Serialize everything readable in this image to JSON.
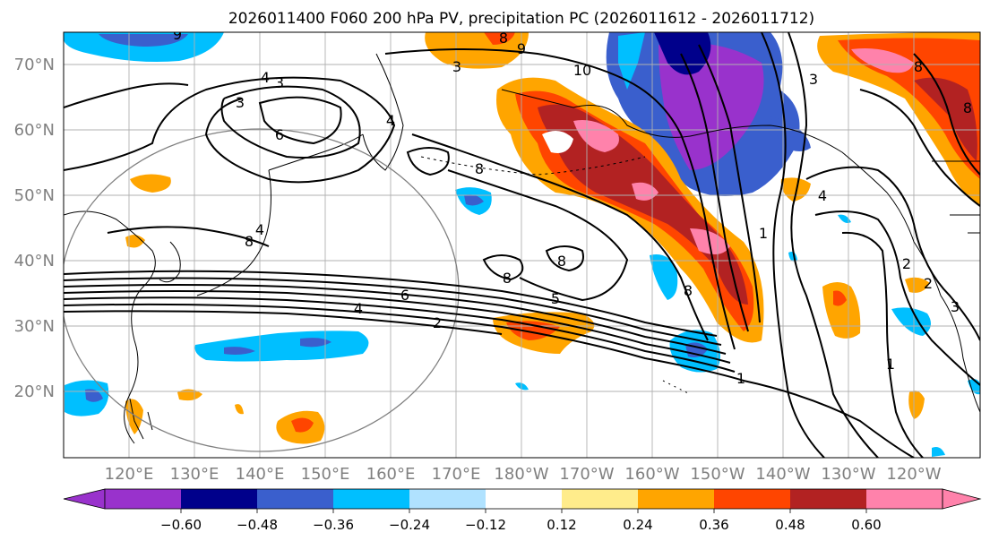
{
  "title": "2026011400 F060 200 hPa PV, precipitation PC (2026011612 - 2026011712)",
  "lat_labels": [
    "70°N",
    "60°N",
    "50°N",
    "40°N",
    "30°N",
    "20°N"
  ],
  "lon_labels": [
    "120°E",
    "130°E",
    "140°E",
    "150°E",
    "160°E",
    "170°E",
    "180°W",
    "170°W",
    "160°W",
    "150°W",
    "140°W",
    "130°W",
    "120°W"
  ],
  "colorbar": {
    "colors": [
      "#9932cc",
      "#00008b",
      "#3a5fcd",
      "#00bfff",
      "#b0e2ff",
      "#ffffff",
      "#ffec8b",
      "#ffa500",
      "#ff4500",
      "#b22222",
      "#ff82ab"
    ],
    "ticks": [
      "−0.60",
      "−0.48",
      "−0.36",
      "−0.24",
      "−0.12",
      "0.12",
      "0.24",
      "0.36",
      "0.48",
      "0.60"
    ]
  },
  "contour_labels": [
    "4",
    "3",
    "3",
    "3",
    "4",
    "6",
    "8",
    "8",
    "9",
    "9",
    "10",
    "8",
    "8",
    "8",
    "8",
    "6",
    "5",
    "4",
    "2",
    "1",
    "1",
    "4",
    "3",
    "3",
    "2",
    "2",
    "1",
    "8",
    "8",
    "4"
  ],
  "colors": {
    "land": "#000000",
    "grid": "#b0b0b0",
    "contour": "#000000",
    "circle": "#808080",
    "axis_label": "#808080"
  }
}
